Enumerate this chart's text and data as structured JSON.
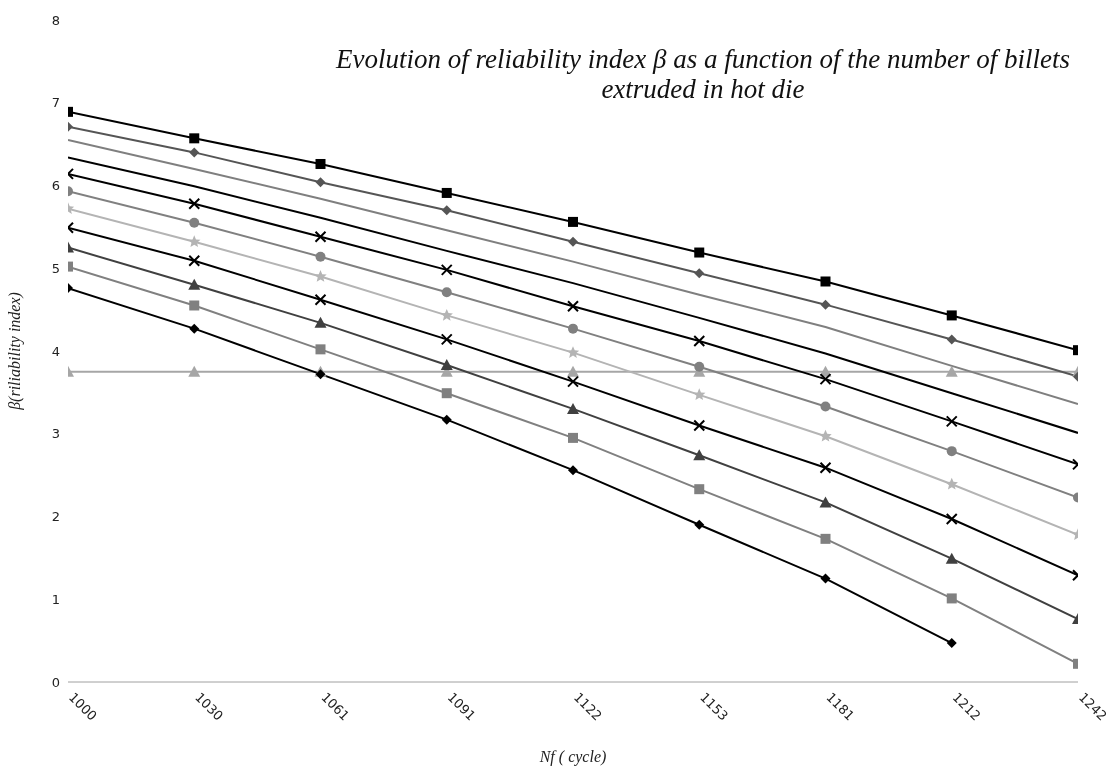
{
  "chart_data": {
    "type": "line",
    "title": "Evolution of reliability index β as a function of the number of billets extruded in hot die",
    "xlabel": "Nf ( cycle)",
    "ylabel": "β(riliability index)",
    "categories": [
      "1000",
      "1030",
      "1061",
      "1091",
      "1122",
      "1153",
      "1181",
      "1212",
      "1242"
    ],
    "ylim": [
      0,
      8
    ],
    "yticks": [
      0,
      1,
      2,
      3,
      4,
      5,
      6,
      7,
      8
    ],
    "series": [
      {
        "color": "#000000",
        "marker": "square",
        "values": [
          6.89,
          6.57,
          6.26,
          5.91,
          5.56,
          5.19,
          4.84,
          4.43,
          4.01
        ]
      },
      {
        "color": "#555555",
        "marker": "diamond",
        "values": [
          6.71,
          6.4,
          6.04,
          5.7,
          5.32,
          4.94,
          4.56,
          4.14,
          3.69
        ]
      },
      {
        "color": "#7f7f7f",
        "marker": "none",
        "values": [
          6.55,
          6.2,
          5.84,
          5.46,
          5.08,
          4.68,
          4.29,
          3.82,
          3.36
        ]
      },
      {
        "color": "#000000",
        "marker": "none",
        "values": [
          6.34,
          5.99,
          5.61,
          5.21,
          4.82,
          4.4,
          3.97,
          3.49,
          3.01
        ]
      },
      {
        "color": "#000000",
        "marker": "cross",
        "values": [
          6.14,
          5.78,
          5.38,
          4.98,
          4.54,
          4.12,
          3.66,
          3.15,
          2.63
        ]
      },
      {
        "color": "#808080",
        "marker": "circle",
        "values": [
          5.93,
          5.55,
          5.14,
          4.71,
          4.27,
          3.81,
          3.33,
          2.79,
          2.23
        ]
      },
      {
        "color": "#b4b4b4",
        "marker": "star",
        "values": [
          5.72,
          5.32,
          4.9,
          4.43,
          3.98,
          3.47,
          2.97,
          2.39,
          1.78
        ]
      },
      {
        "color": "#000000",
        "marker": "cross",
        "values": [
          5.49,
          5.09,
          4.62,
          4.14,
          3.63,
          3.1,
          2.59,
          1.97,
          1.29
        ]
      },
      {
        "color": "#404040",
        "marker": "triangle",
        "values": [
          5.25,
          4.8,
          4.34,
          3.83,
          3.3,
          2.74,
          2.17,
          1.49,
          0.76
        ]
      },
      {
        "color": "#808080",
        "marker": "square",
        "values": [
          5.02,
          4.55,
          4.02,
          3.49,
          2.95,
          2.33,
          1.73,
          1.01,
          0.22
        ]
      },
      {
        "color": "#000000",
        "marker": "diamond",
        "values": [
          4.76,
          4.27,
          3.72,
          3.17,
          2.56,
          1.9,
          1.25,
          0.47,
          null
        ]
      },
      {
        "color": "#a6a6a6",
        "marker": "triangle",
        "values": [
          3.75,
          3.75,
          3.75,
          3.75,
          3.75,
          3.75,
          3.75,
          3.75,
          3.75
        ]
      }
    ]
  }
}
